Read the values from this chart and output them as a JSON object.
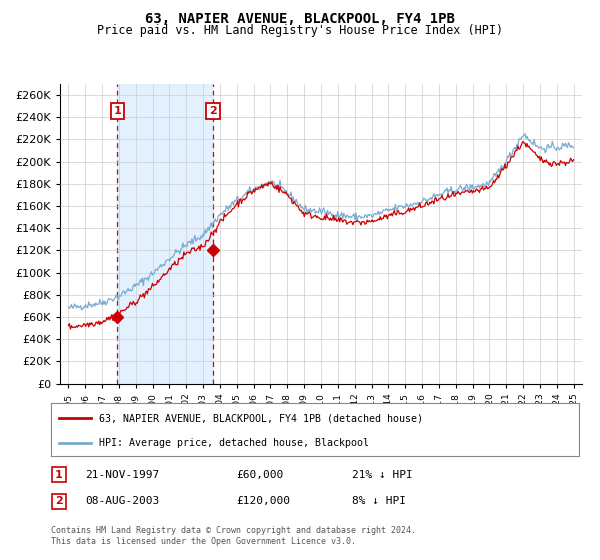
{
  "title": "63, NAPIER AVENUE, BLACKPOOL, FY4 1PB",
  "subtitle": "Price paid vs. HM Land Registry's House Price Index (HPI)",
  "xlim": [
    1994.5,
    2025.5
  ],
  "ylim": [
    0,
    270000
  ],
  "yticks": [
    0,
    20000,
    40000,
    60000,
    80000,
    100000,
    120000,
    140000,
    160000,
    180000,
    200000,
    220000,
    240000,
    260000
  ],
  "xticks": [
    1995,
    1996,
    1997,
    1998,
    1999,
    2000,
    2001,
    2002,
    2003,
    2004,
    2005,
    2006,
    2007,
    2008,
    2009,
    2010,
    2011,
    2012,
    2013,
    2014,
    2015,
    2016,
    2017,
    2018,
    2019,
    2020,
    2021,
    2022,
    2023,
    2024,
    2025
  ],
  "sale1_date": 1997.896,
  "sale1_price": 60000,
  "sale1_label": "1",
  "sale1_date_str": "21-NOV-1997",
  "sale1_price_str": "£60,000",
  "sale1_hpi_str": "21% ↓ HPI",
  "sale2_date": 2003.594,
  "sale2_price": 120000,
  "sale2_label": "2",
  "sale2_date_str": "08-AUG-2003",
  "sale2_price_str": "£120,000",
  "sale2_hpi_str": "8% ↓ HPI",
  "red_line_color": "#cc0000",
  "blue_line_color": "#7aabcf",
  "dot_color": "#cc0000",
  "vline_color": "#dd0000",
  "shade_color": "#ddeeff",
  "grid_color": "#cccccc",
  "bg_color": "#ffffff",
  "legend_line1": "63, NAPIER AVENUE, BLACKPOOL, FY4 1PB (detached house)",
  "legend_line2": "HPI: Average price, detached house, Blackpool",
  "footnote": "Contains HM Land Registry data © Crown copyright and database right 2024.\nThis data is licensed under the Open Government Licence v3.0.",
  "box_color": "#cc0000",
  "hpi_anchors_x": [
    1995,
    1996,
    1997,
    1998,
    1999,
    2000,
    2001,
    2002,
    2003,
    2004,
    2005,
    2006,
    2007,
    2008,
    2009,
    2010,
    2011,
    2012,
    2013,
    2014,
    2015,
    2016,
    2017,
    2018,
    2019,
    2020,
    2021,
    2022,
    2023,
    2024,
    2025
  ],
  "hpi_anchors_y": [
    68000,
    70500,
    73000,
    79000,
    88000,
    99000,
    113000,
    125000,
    134000,
    152000,
    165000,
    175000,
    182000,
    172000,
    157000,
    155000,
    152000,
    150000,
    151000,
    156000,
    160000,
    164000,
    170000,
    175000,
    177000,
    180000,
    200000,
    225000,
    212000,
    213000,
    215000
  ],
  "red_anchors_x": [
    1995,
    1996,
    1997,
    1998,
    1999,
    2000,
    2001,
    2002,
    2003,
    2004,
    2005,
    2006,
    2007,
    2008,
    2009,
    2010,
    2011,
    2012,
    2013,
    2014,
    2015,
    2016,
    2017,
    2018,
    2019,
    2020,
    2021,
    2022,
    2023,
    2024,
    2025
  ],
  "red_anchors_y": [
    51000,
    53000,
    56000,
    63000,
    74000,
    87000,
    103000,
    117000,
    124000,
    145000,
    162000,
    174000,
    181000,
    170000,
    153000,
    150000,
    147000,
    145000,
    146000,
    151000,
    155000,
    160000,
    166000,
    170000,
    173000,
    176000,
    197000,
    218000,
    202000,
    198000,
    201000
  ],
  "hpi_noise_scale": 1800,
  "red_noise_scale": 1500,
  "noise_seed": 42
}
